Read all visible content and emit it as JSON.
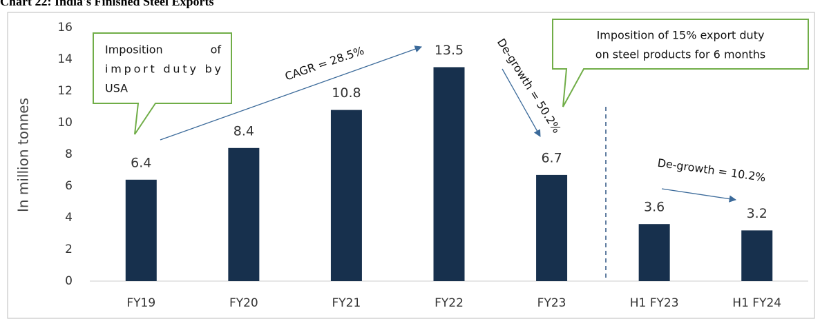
{
  "chart_data": {
    "type": "bar",
    "title": "Chart 22: India's Finished Steel Exports",
    "y_label": "In million tonnes",
    "categories": [
      "FY19",
      "FY20",
      "FY21",
      "FY22",
      "FY23",
      "H1 FY23",
      "H1 FY24"
    ],
    "values": [
      6.4,
      8.4,
      10.8,
      13.5,
      6.7,
      3.6,
      3.2
    ],
    "color": "#17304d",
    "ylim": [
      0,
      16
    ],
    "yticks": [
      0,
      2,
      4,
      6,
      8,
      10,
      12,
      14,
      16
    ],
    "grid": false,
    "annotations": {
      "callout_usa": [
        "Imposition",
        "of",
        "import duty by",
        "USA"
      ],
      "cagr": "CAGR = 28.5%",
      "degrowth_fy23": "De-growth = 50.2%",
      "callout_export": [
        "Imposition of 15% export duty",
        "on steel products for 6 months"
      ],
      "degrowth_h1": "De-growth = 10.2%"
    }
  }
}
